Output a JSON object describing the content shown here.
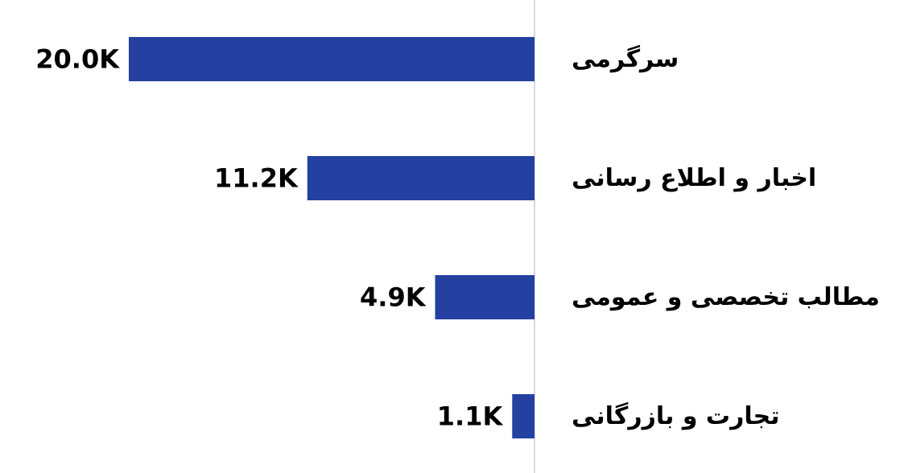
{
  "chart_data": {
    "type": "bar",
    "orientation": "horizontal",
    "direction": "rtl",
    "categories": [
      "سرگرمی",
      "اخبار و اطلاع رسانی",
      "مطالب تخصصی و عمومی",
      "تجارت و بازرگانی"
    ],
    "values": [
      20000,
      11200,
      4900,
      1100
    ],
    "data_labels": [
      "20.0K",
      "11.2K",
      "4.9K",
      "1.1K"
    ],
    "title": "",
    "xlabel": "",
    "ylabel": "",
    "xlim": [
      0,
      20000
    ],
    "grid": false,
    "legend": "none",
    "bar_color": "#2440a0",
    "axis_color": "#d9d9d9"
  }
}
